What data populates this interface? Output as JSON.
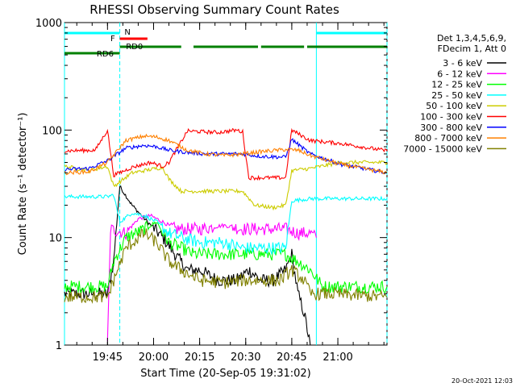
{
  "chart_data": {
    "type": "line",
    "title": "RHESSI Observing Summary Count Rates",
    "xlabel": "Start Time (20-Sep-05 19:31:02)",
    "ylabel": "Count Rate (s⁻¹ detector⁻¹)",
    "yscale": "log",
    "ylim": [
      1,
      1000
    ],
    "xlim_minutes": [
      0,
      105
    ],
    "xticks": [
      {
        "minute": 14,
        "label": "19:45"
      },
      {
        "minute": 29,
        "label": "20:00"
      },
      {
        "minute": 44,
        "label": "20:15"
      },
      {
        "minute": 59,
        "label": "20:30"
      },
      {
        "minute": 74,
        "label": "20:45"
      },
      {
        "minute": 89,
        "label": "21:00"
      }
    ],
    "yticks": [
      {
        "value": 1,
        "label": "1"
      },
      {
        "value": 10,
        "label": "10"
      },
      {
        "value": 100,
        "label": "100"
      },
      {
        "value": 1000,
        "label": "1000"
      }
    ],
    "legend": {
      "position": "right",
      "header": [
        "Det 1,3,4,5,6,9,",
        "FDecim 1, Att 0"
      ]
    },
    "series": [
      {
        "name": "3 - 6 keV",
        "color": "#000000",
        "points": [
          [
            0,
            3
          ],
          [
            14,
            3
          ],
          [
            16,
            6
          ],
          [
            18,
            30
          ],
          [
            22,
            20
          ],
          [
            26,
            15
          ],
          [
            32,
            10
          ],
          [
            36,
            7
          ],
          [
            40,
            5
          ],
          [
            44,
            5
          ],
          [
            50,
            4
          ],
          [
            56,
            4
          ],
          [
            60,
            5
          ],
          [
            64,
            4
          ],
          [
            68,
            4
          ],
          [
            72,
            5
          ],
          [
            74,
            7
          ],
          [
            76,
            3
          ],
          [
            78,
            2
          ],
          [
            80,
            1
          ]
        ]
      },
      {
        "name": "6 - 12 keV",
        "color": "#ff00ff",
        "points": [
          [
            0,
            null
          ],
          [
            14,
            1
          ],
          [
            15,
            12
          ],
          [
            20,
            11
          ],
          [
            24,
            15
          ],
          [
            28,
            16
          ],
          [
            32,
            14
          ],
          [
            36,
            12
          ],
          [
            44,
            12
          ],
          [
            52,
            13
          ],
          [
            58,
            12
          ],
          [
            62,
            12
          ],
          [
            66,
            12
          ],
          [
            72,
            12
          ],
          [
            76,
            11
          ],
          [
            80,
            11
          ],
          [
            82,
            10
          ]
        ]
      },
      {
        "name": "12 - 25 keV",
        "color": "#00ff00",
        "points": [
          [
            0,
            3.5
          ],
          [
            14,
            3.5
          ],
          [
            16,
            6
          ],
          [
            20,
            10
          ],
          [
            26,
            12
          ],
          [
            30,
            14
          ],
          [
            34,
            9
          ],
          [
            38,
            8
          ],
          [
            42,
            7
          ],
          [
            50,
            7
          ],
          [
            58,
            7
          ],
          [
            64,
            7
          ],
          [
            72,
            7
          ],
          [
            76,
            6
          ],
          [
            80,
            5
          ],
          [
            84,
            3.5
          ],
          [
            105,
            3.5
          ]
        ]
      },
      {
        "name": "25 - 50 keV",
        "color": "#00ffff",
        "points": [
          [
            0,
            24
          ],
          [
            14,
            24
          ],
          [
            16,
            25
          ],
          [
            18,
            14
          ],
          [
            22,
            17
          ],
          [
            26,
            16
          ],
          [
            30,
            14
          ],
          [
            34,
            11
          ],
          [
            38,
            10
          ],
          [
            44,
            9
          ],
          [
            52,
            9
          ],
          [
            58,
            8
          ],
          [
            64,
            8
          ],
          [
            72,
            8
          ],
          [
            74,
            22
          ],
          [
            80,
            23
          ],
          [
            90,
            23
          ],
          [
            105,
            23
          ]
        ]
      },
      {
        "name": "50 - 100 keV",
        "color": "#cccc00",
        "points": [
          [
            0,
            46
          ],
          [
            8,
            42
          ],
          [
            14,
            46
          ],
          [
            16,
            30
          ],
          [
            22,
            40
          ],
          [
            28,
            43
          ],
          [
            32,
            45
          ],
          [
            34,
            35
          ],
          [
            38,
            27
          ],
          [
            44,
            27
          ],
          [
            52,
            27
          ],
          [
            58,
            27
          ],
          [
            62,
            20
          ],
          [
            68,
            19
          ],
          [
            72,
            20
          ],
          [
            74,
            42
          ],
          [
            80,
            44
          ],
          [
            90,
            50
          ],
          [
            105,
            50
          ]
        ]
      },
      {
        "name": "100 - 300 keV",
        "color": "#ff0000",
        "points": [
          [
            0,
            64
          ],
          [
            10,
            65
          ],
          [
            14,
            100
          ],
          [
            16,
            38
          ],
          [
            22,
            45
          ],
          [
            28,
            50
          ],
          [
            32,
            46
          ],
          [
            34,
            50
          ],
          [
            40,
            98
          ],
          [
            50,
            95
          ],
          [
            56,
            100
          ],
          [
            58,
            96
          ],
          [
            60,
            36
          ],
          [
            66,
            36
          ],
          [
            72,
            36
          ],
          [
            74,
            100
          ],
          [
            80,
            80
          ],
          [
            90,
            75
          ],
          [
            105,
            64
          ]
        ]
      },
      {
        "name": "300 - 800 keV",
        "color": "#0000ff",
        "points": [
          [
            0,
            43
          ],
          [
            8,
            44
          ],
          [
            14,
            52
          ],
          [
            20,
            68
          ],
          [
            26,
            72
          ],
          [
            30,
            70
          ],
          [
            34,
            65
          ],
          [
            40,
            62
          ],
          [
            46,
            60
          ],
          [
            52,
            60
          ],
          [
            58,
            60
          ],
          [
            64,
            57
          ],
          [
            72,
            56
          ],
          [
            74,
            82
          ],
          [
            80,
            60
          ],
          [
            90,
            48
          ],
          [
            105,
            40
          ]
        ]
      },
      {
        "name": "800 - 7000 keV",
        "color": "#ff8000",
        "points": [
          [
            0,
            40
          ],
          [
            8,
            41
          ],
          [
            14,
            50
          ],
          [
            20,
            80
          ],
          [
            26,
            88
          ],
          [
            30,
            86
          ],
          [
            34,
            80
          ],
          [
            40,
            65
          ],
          [
            46,
            60
          ],
          [
            52,
            58
          ],
          [
            58,
            60
          ],
          [
            64,
            63
          ],
          [
            72,
            66
          ],
          [
            76,
            65
          ],
          [
            80,
            58
          ],
          [
            90,
            48
          ],
          [
            105,
            40
          ]
        ]
      },
      {
        "name": "7000 - 15000 keV",
        "color": "#808000",
        "points": [
          [
            0,
            2.8
          ],
          [
            10,
            2.8
          ],
          [
            14,
            2.8
          ],
          [
            16,
            4
          ],
          [
            20,
            8
          ],
          [
            26,
            11
          ],
          [
            30,
            9
          ],
          [
            34,
            6
          ],
          [
            38,
            5
          ],
          [
            44,
            4
          ],
          [
            52,
            3.8
          ],
          [
            58,
            4
          ],
          [
            62,
            4
          ],
          [
            70,
            4
          ],
          [
            74,
            5
          ],
          [
            78,
            4
          ],
          [
            80,
            3
          ],
          [
            86,
            3
          ],
          [
            105,
            2.8
          ]
        ]
      }
    ],
    "flags": [
      {
        "label": "N",
        "color": "#00ffff",
        "segments": [
          [
            0,
            18
          ],
          [
            82,
            105
          ]
        ]
      },
      {
        "label": "F",
        "color": "#ff0000",
        "segments": [
          [
            18,
            27
          ]
        ]
      },
      {
        "label": "RD0",
        "color": "#008000",
        "segments": [
          [
            18,
            38
          ],
          [
            42,
            63
          ],
          [
            64,
            78
          ],
          [
            79,
            105
          ]
        ]
      },
      {
        "label": "RD6",
        "color": "#008000",
        "segments": [
          [
            0,
            18
          ]
        ]
      }
    ],
    "boundaries_minutes": [
      0,
      18,
      82,
      105
    ]
  },
  "footer": {
    "timestamp": "20-Oct-2021 12:03"
  }
}
